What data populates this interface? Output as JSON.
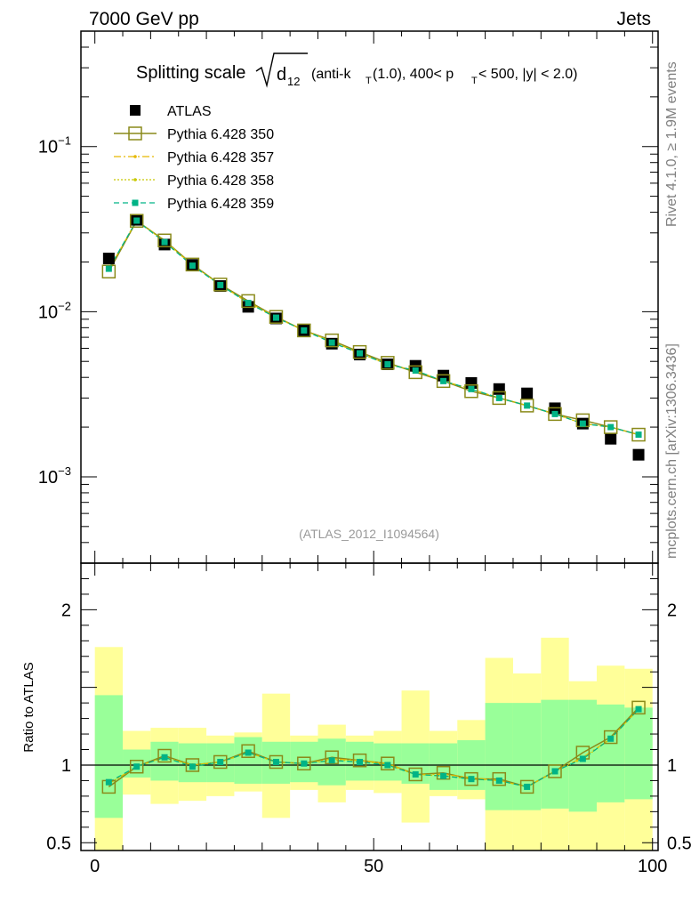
{
  "header": {
    "left": "7000 GeV pp",
    "right": "Jets"
  },
  "title": {
    "main": "Splitting scale",
    "sym": "d",
    "sub": "12",
    "rest_a": " (anti-k",
    "rest_sub_t": "T",
    "rest_b": "(1.0), 400< p",
    "rest_sub_t2": "T",
    "rest_c": " < 500, |y| < 2.0)"
  },
  "side_labels": {
    "rivet": "Rivet 4.1.0, ≥ 1.9M events",
    "mcplots": "mcplots.cern.ch [arXiv:1306.3436]"
  },
  "analysis_id": "(ATLAS_2012_I1094564)",
  "ratio_ylabel": "Ratio to ATLAS",
  "top_ticks": [
    {
      "base": "10",
      "exp": "−1",
      "value": 0.1
    },
    {
      "base": "10",
      "exp": "−2",
      "value": 0.01
    },
    {
      "base": "10",
      "exp": "−3",
      "value": 0.001
    }
  ],
  "ratio_ticks": [
    "2",
    "1",
    "0.5"
  ],
  "x_ticks": [
    "0",
    "50",
    "100"
  ],
  "colors": {
    "data": "#000000",
    "p350": "#8a8a1a",
    "p357": "#e6b800",
    "p358": "#c8c800",
    "p359": "#00b386",
    "band_inner": "#99ff99",
    "band_outer": "#ffff99"
  },
  "chart_data": {
    "type": "line",
    "title": "Splitting scale sqrt(d12) (anti-kT(1.0), 400< pT < 500, |y| < 2.0)",
    "xlabel": "",
    "ylabel": "",
    "xlim": [
      -2.5,
      101
    ],
    "ylim": [
      0.0003,
      0.5
    ],
    "yscale": "log",
    "ratio_ylim": [
      0.45,
      2.3
    ],
    "x": [
      2.5,
      7.5,
      12.5,
      17.5,
      22.5,
      27.5,
      32.5,
      37.5,
      42.5,
      47.5,
      52.5,
      57.5,
      62.5,
      67.5,
      72.5,
      77.5,
      82.5,
      87.5,
      92.5,
      97.5
    ],
    "data": {
      "name": "ATLAS",
      "values": [
        0.021,
        0.036,
        0.0255,
        0.0192,
        0.0143,
        0.0107,
        0.0091,
        0.0077,
        0.0064,
        0.0055,
        0.0048,
        0.0047,
        0.0041,
        0.0037,
        0.0034,
        0.0032,
        0.0026,
        0.0021,
        0.0017,
        0.00136
      ],
      "band_inner_lo": [
        0.66,
        0.92,
        0.9,
        0.89,
        0.89,
        0.88,
        0.88,
        0.89,
        0.87,
        0.9,
        0.9,
        0.88,
        0.84,
        0.84,
        0.71,
        0.71,
        0.72,
        0.7,
        0.76,
        0.78
      ],
      "band_inner_hi": [
        1.45,
        1.1,
        1.15,
        1.14,
        1.14,
        1.18,
        1.15,
        1.15,
        1.17,
        1.15,
        1.14,
        1.14,
        1.14,
        1.16,
        1.4,
        1.4,
        1.42,
        1.42,
        1.39,
        1.37
      ],
      "band_outer_lo": [
        0.4,
        0.81,
        0.75,
        0.77,
        0.8,
        0.83,
        0.66,
        0.84,
        0.76,
        0.84,
        0.82,
        0.63,
        0.8,
        0.78,
        0.2,
        0.35,
        0.2,
        0.4,
        0.4,
        0.4
      ],
      "band_outer_hi": [
        1.76,
        1.22,
        1.24,
        1.24,
        1.19,
        1.21,
        1.46,
        1.19,
        1.26,
        1.19,
        1.22,
        1.48,
        1.22,
        1.29,
        1.69,
        1.59,
        1.82,
        1.54,
        1.64,
        1.62
      ]
    },
    "series": [
      {
        "name": "Pythia 6.428 350",
        "style": "solid-open-square",
        "values": [
          0.0175,
          0.0355,
          0.027,
          0.0193,
          0.0146,
          0.0116,
          0.0093,
          0.0077,
          0.0067,
          0.0057,
          0.0049,
          0.0043,
          0.0038,
          0.0033,
          0.003,
          0.0027,
          0.0024,
          0.0022,
          0.002,
          0.0018
        ]
      },
      {
        "name": "Pythia 6.428 357",
        "style": "dashdot-small-dot",
        "values": [
          0.018,
          0.0358,
          0.0268,
          0.0192,
          0.0145,
          0.0114,
          0.0093,
          0.0077,
          0.0066,
          0.0056,
          0.0048,
          0.0044,
          0.0038,
          0.0034,
          0.003,
          0.0027,
          0.0024,
          0.0021,
          0.002,
          0.0018
        ]
      },
      {
        "name": "Pythia 6.428 358",
        "style": "dotted-small-dot",
        "values": [
          0.018,
          0.0357,
          0.0266,
          0.0191,
          0.0145,
          0.0113,
          0.0092,
          0.0077,
          0.0066,
          0.0056,
          0.0048,
          0.0044,
          0.0038,
          0.0034,
          0.003,
          0.0027,
          0.0024,
          0.0021,
          0.002,
          0.0018
        ]
      },
      {
        "name": "Pythia 6.428 359",
        "style": "dashed-filled-square",
        "values": [
          0.0182,
          0.0356,
          0.0264,
          0.019,
          0.0145,
          0.0113,
          0.0092,
          0.0077,
          0.0065,
          0.0056,
          0.0048,
          0.0044,
          0.0038,
          0.0034,
          0.003,
          0.0027,
          0.0024,
          0.0021,
          0.002,
          0.0018
        ]
      }
    ],
    "ratios": {
      "Pythia 6.428 350": [
        0.86,
        0.99,
        1.06,
        1.0,
        1.02,
        1.09,
        1.02,
        1.01,
        1.05,
        1.03,
        1.01,
        0.94,
        0.95,
        0.91,
        0.91,
        0.86,
        0.96,
        1.08,
        1.18,
        1.37
      ],
      "Pythia 6.428 357": [
        0.88,
        0.99,
        1.05,
        1.0,
        1.02,
        1.08,
        1.02,
        1.01,
        1.04,
        1.03,
        1.01,
        0.94,
        0.94,
        0.92,
        0.9,
        0.86,
        0.96,
        1.05,
        1.17,
        1.36
      ],
      "Pythia 6.428 358": [
        0.88,
        0.99,
        1.05,
        1.0,
        1.02,
        1.08,
        1.02,
        1.01,
        1.03,
        1.03,
        1.0,
        0.94,
        0.93,
        0.91,
        0.9,
        0.86,
        0.96,
        1.04,
        1.17,
        1.36
      ],
      "Pythia 6.428 359": [
        0.89,
        0.99,
        1.05,
        0.99,
        1.02,
        1.08,
        1.02,
        1.01,
        1.03,
        1.02,
        1.0,
        0.94,
        0.93,
        0.91,
        0.9,
        0.86,
        0.96,
        1.04,
        1.17,
        1.36
      ]
    }
  }
}
